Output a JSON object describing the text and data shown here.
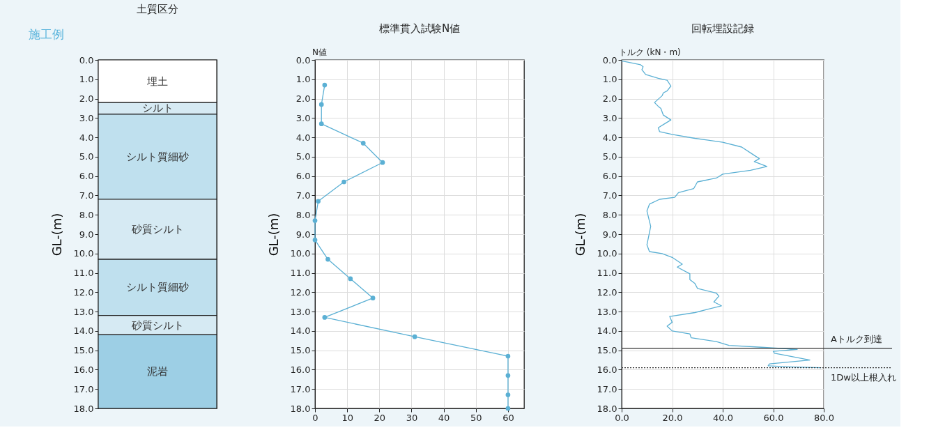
{
  "chart_data": [
    {
      "type": "bar",
      "title": "土質区分",
      "ylabel": "GL-(m)",
      "annotations": [
        "施工例"
      ],
      "categories": [
        null
      ],
      "stacked": true,
      "legend": false,
      "grid": false,
      "tick_labels": "y",
      "ylim": [
        18,
        0
      ],
      "yticks": [
        {
          "value": 0,
          "label": "0.0"
        },
        {
          "value": 1,
          "label": "1.0"
        },
        {
          "value": 2,
          "label": "2.0"
        },
        {
          "value": 3,
          "label": "3.0"
        },
        {
          "value": 4,
          "label": "4.0"
        },
        {
          "value": 5,
          "label": "5.0"
        },
        {
          "value": 6,
          "label": "6.0"
        },
        {
          "value": 7,
          "label": "7.0"
        },
        {
          "value": 8,
          "label": "8.0"
        },
        {
          "value": 9,
          "label": "9.0"
        },
        {
          "value": 10,
          "label": "10.0"
        },
        {
          "value": 11,
          "label": "11.0"
        },
        {
          "value": 12,
          "label": "12.0"
        },
        {
          "value": 13,
          "label": "13.0"
        },
        {
          "value": 14,
          "label": "14.0"
        },
        {
          "value": 15,
          "label": "15.0"
        },
        {
          "value": 16,
          "label": "16.0"
        },
        {
          "value": 17,
          "label": "17.0"
        },
        {
          "value": 18,
          "label": "18.0"
        }
      ],
      "series": [
        {
          "name": "埋土",
          "color": "#ffffff",
          "values": [
            2.2
          ]
        },
        {
          "name": "シルト",
          "color": "#d6eaf3",
          "values": [
            0.6
          ]
        },
        {
          "name": "シルト質細砂",
          "color": "#bfe0ee",
          "values": [
            4.4
          ]
        },
        {
          "name": "砂質シルト",
          "color": "#d6eaf3",
          "values": [
            3.1
          ]
        },
        {
          "name": "シルト質細砂",
          "color": "#bfe0ee",
          "values": [
            2.9
          ]
        },
        {
          "name": "砂質シルト",
          "color": "#d6eaf3",
          "values": [
            1.0
          ]
        },
        {
          "name": "泥岩",
          "color": "#9dcfe5",
          "values": [
            3.8
          ]
        }
      ]
    },
    {
      "type": "line",
      "title": "標準貫入試験N値",
      "xlabel": "N値",
      "ylabel": "GL-(m)",
      "orientation": "horizontal",
      "grid": true,
      "legend": false,
      "marker": "circle",
      "line_style": "solid",
      "xlim": [
        0,
        65
      ],
      "xticks": [
        0,
        10,
        20,
        30,
        40,
        50,
        60
      ],
      "ylim": [
        18,
        0
      ],
      "yticks": [
        {
          "value": 0,
          "label": "0.0"
        },
        {
          "value": 1,
          "label": "1.0"
        },
        {
          "value": 2,
          "label": "2.0"
        },
        {
          "value": 3,
          "label": "3.0"
        },
        {
          "value": 4,
          "label": "4.0"
        },
        {
          "value": 5,
          "label": "5.0"
        },
        {
          "value": 6,
          "label": "6.0"
        },
        {
          "value": 7,
          "label": "7.0"
        },
        {
          "value": 8,
          "label": "8.0"
        },
        {
          "value": 9,
          "label": "9.0"
        },
        {
          "value": 10,
          "label": "10.0"
        },
        {
          "value": 11,
          "label": "11.0"
        },
        {
          "value": 12,
          "label": "12.0"
        },
        {
          "value": 13,
          "label": "13.0"
        },
        {
          "value": 14,
          "label": "14.0"
        },
        {
          "value": 15,
          "label": "15.0"
        },
        {
          "value": 16,
          "label": "16.0"
        },
        {
          "value": 17,
          "label": "17.0"
        },
        {
          "value": 18,
          "label": "18.0"
        }
      ],
      "x": [
        1.3,
        2.3,
        3.3,
        4.3,
        5.3,
        6.3,
        7.3,
        8.3,
        9.3,
        10.3,
        11.3,
        12.3,
        13.3,
        14.3,
        15.3,
        16.3,
        17.3,
        18
      ],
      "series": [
        {
          "color": "#5bb0d4",
          "values": [
            3,
            2,
            2,
            15,
            21,
            9,
            1,
            0,
            0,
            4,
            11,
            18,
            3,
            31,
            60,
            60,
            60,
            60
          ]
        }
      ]
    },
    {
      "type": "line",
      "title": "回転埋設記録",
      "xlabel": "トルク (kN・m)",
      "ylabel": "GL-(m)",
      "orientation": "horizontal",
      "grid": true,
      "legend": false,
      "marker": "none",
      "line_style": "solid",
      "xlim": [
        0,
        80
      ],
      "xticks": [
        {
          "value": 0,
          "label": "0.0"
        },
        {
          "value": 20,
          "label": "20.0"
        },
        {
          "value": 40,
          "label": "40.0"
        },
        {
          "value": 60,
          "label": "60.0"
        },
        {
          "value": 80,
          "label": "80.0"
        }
      ],
      "ylim": [
        18,
        0
      ],
      "yticks": [
        {
          "value": 0,
          "label": "0.0"
        },
        {
          "value": 1,
          "label": "1.0"
        },
        {
          "value": 2,
          "label": "2.0"
        },
        {
          "value": 3,
          "label": "3.0"
        },
        {
          "value": 4,
          "label": "4.0"
        },
        {
          "value": 5,
          "label": "5.0"
        },
        {
          "value": 6,
          "label": "6.0"
        },
        {
          "value": 7,
          "label": "7.0"
        },
        {
          "value": 8,
          "label": "8.0"
        },
        {
          "value": 9,
          "label": "9.0"
        },
        {
          "value": 10,
          "label": "10.0"
        },
        {
          "value": 11,
          "label": "11.0"
        },
        {
          "value": 12,
          "label": "12.0"
        },
        {
          "value": 13,
          "label": "13.0"
        },
        {
          "value": 14,
          "label": "14.0"
        },
        {
          "value": 15,
          "label": "15.0"
        },
        {
          "value": 16,
          "label": "16.0"
        },
        {
          "value": 17,
          "label": "17.0"
        },
        {
          "value": 18,
          "label": "18.0"
        }
      ],
      "x": [
        0.05,
        0.25,
        0.35,
        0.5,
        0.75,
        0.95,
        1.05,
        1.35,
        1.6,
        1.7,
        1.85,
        2.2,
        2.4,
        2.5,
        2.85,
        3.1,
        3.3,
        3.5,
        3.7,
        3.85,
        4.05,
        4.25,
        4.5,
        4.8,
        5.1,
        5.25,
        5.5,
        5.7,
        5.9,
        6.1,
        6.3,
        6.65,
        6.85,
        7.1,
        7.2,
        7.45,
        7.8,
        8.6,
        9.55,
        9.9,
        10.0,
        10.2,
        10.55,
        10.7,
        11.05,
        11.35,
        11.55,
        11.8,
        12.05,
        12.2,
        12.5,
        12.7,
        13.05,
        13.25,
        13.55,
        13.75,
        14.0,
        14.15,
        14.35,
        14.55,
        14.75,
        14.85,
        14.95,
        15.05,
        15.15,
        15.5,
        15.7,
        15.8,
        15.85,
        15.9
      ],
      "series": [
        {
          "color": "#5bb0d4",
          "values": [
            0,
            7.5,
            8.5,
            8,
            9.5,
            14.5,
            18,
            19.5,
            18,
            16.5,
            16,
            13,
            14.5,
            15.5,
            16.5,
            19.5,
            17,
            14.5,
            15,
            20,
            29,
            40,
            47.5,
            51,
            54.5,
            52.5,
            57.5,
            51,
            40,
            37.5,
            30,
            28.5,
            22.5,
            21,
            15,
            11,
            10,
            11.5,
            10,
            11,
            16,
            20,
            24,
            22,
            27,
            27,
            29,
            30,
            37.5,
            38.5,
            36.5,
            39.5,
            29,
            19,
            20,
            18,
            20,
            27,
            27.5,
            37.5,
            42.5,
            56.5,
            69.5,
            60,
            60.5,
            74.5,
            58.5,
            58,
            66,
            79
          ]
        }
      ],
      "ref_lines": [
        {
          "axis": "y",
          "value": 14.9,
          "label": "Aトルク到達",
          "line_style": "solid",
          "color": "#333333"
        },
        {
          "axis": "y",
          "value": 15.9,
          "label": "1Dw以上根入れ",
          "line_style": "dotted",
          "color": "#333333"
        }
      ]
    }
  ]
}
